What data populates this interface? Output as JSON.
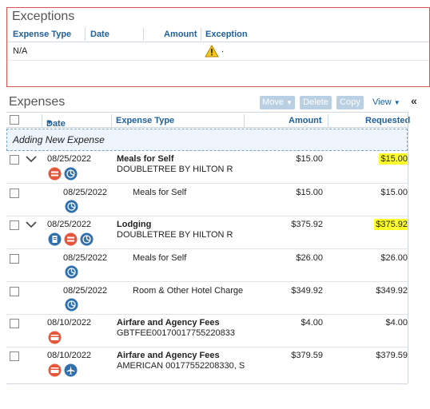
{
  "exceptions": {
    "title": "Exceptions",
    "columns": [
      "Expense Type",
      "Date",
      "Amount",
      "Exception"
    ],
    "rows": [
      {
        "expense_type": "N/A",
        "icon": "warning-icon",
        "exception": "."
      }
    ]
  },
  "expenses": {
    "title": "Expenses",
    "toolbar": {
      "move": "Move",
      "delete": "Delete",
      "copy": "Copy",
      "view": "View"
    },
    "columns": {
      "date": "Date",
      "expense_type": "Expense Type",
      "amount": "Amount",
      "requested": "Requested"
    },
    "adding_label": "Adding New Expense",
    "rows": [
      {
        "date": "08/25/2022",
        "type": "Meals for Self",
        "vendor": "DOUBLETREE BY HILTON R",
        "amount": "$15.00",
        "requested": "$15.00",
        "highlight": true,
        "parent": true
      },
      {
        "date": "08/25/2022",
        "type": "Meals for Self",
        "amount": "$15.00",
        "requested": "$15.00",
        "parent": false
      },
      {
        "date": "08/25/2022",
        "type": "Lodging",
        "vendor": "DOUBLETREE BY HILTON R",
        "amount": "$375.92",
        "requested": "$375.92",
        "highlight": true,
        "parent": true
      },
      {
        "date": "08/25/2022",
        "type": "Meals for Self",
        "amount": "$26.00",
        "requested": "$26.00",
        "parent": false
      },
      {
        "date": "08/25/2022",
        "type": "Room & Other Hotel Charge",
        "amount": "$349.92",
        "requested": "$349.92",
        "parent": false
      },
      {
        "date": "08/10/2022",
        "type": "Airfare and Agency Fees",
        "vendor": "GBTFEE00170017755220833",
        "amount": "$4.00",
        "requested": "$4.00",
        "parent": true
      },
      {
        "date": "08/10/2022",
        "type": "Airfare and Agency Fees",
        "vendor": "AMERICAN 00177552208330, S",
        "amount": "$379.59",
        "requested": "$379.59",
        "parent": true
      }
    ]
  },
  "colors": {
    "header_text": "#1f5f9a",
    "highlight": "#ffff2e",
    "icon_blue": "#2f6fad",
    "icon_orange": "#e8563a",
    "exceptions_border": "#d9534f"
  }
}
